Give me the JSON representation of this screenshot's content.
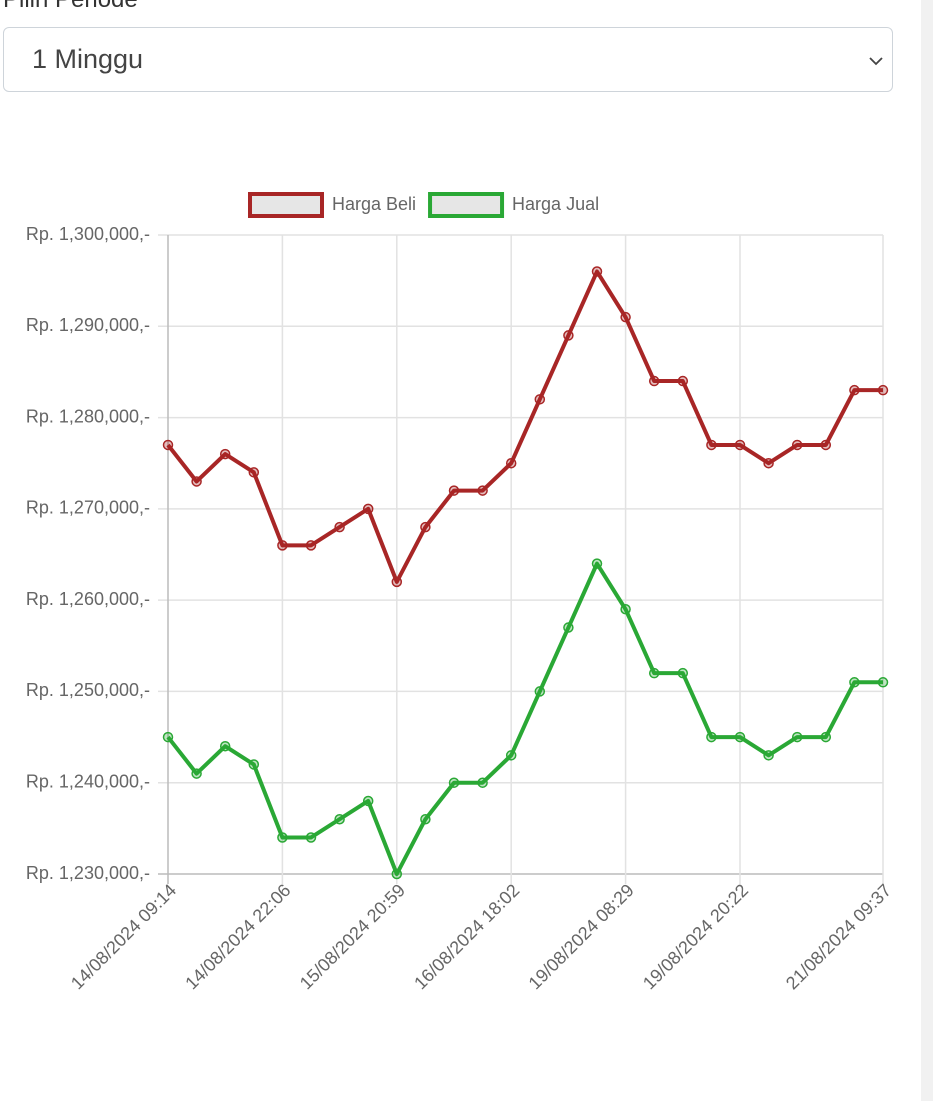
{
  "ui": {
    "label": "Pilih Periode",
    "select": "1 Minggu"
  },
  "chart_data": {
    "type": "line",
    "categories": [
      "14/08/2024 09:14",
      null,
      null,
      null,
      "14/08/2024 22:06",
      null,
      null,
      null,
      "15/08/2024 20:59",
      null,
      null,
      null,
      "16/08/2024 18:02",
      null,
      null,
      null,
      "19/08/2024 08:29",
      null,
      null,
      null,
      "19/08/2024 20:22",
      null,
      null,
      null,
      null,
      "21/08/2024 09:37"
    ],
    "series": [
      {
        "name": "Harga Beli",
        "color": "#a82626",
        "values": [
          1277000,
          1273000,
          1276000,
          1274000,
          1266000,
          1266000,
          1268000,
          1270000,
          1262000,
          1268000,
          1272000,
          1272000,
          1275000,
          1282000,
          1289000,
          1296000,
          1291000,
          1284000,
          1284000,
          1277000,
          1277000,
          1275000,
          1277000,
          1277000,
          1283000,
          1283000
        ]
      },
      {
        "name": "Harga Jual",
        "color": "#2aa835",
        "values": [
          1245000,
          1241000,
          1244000,
          1242000,
          1234000,
          1234000,
          1236000,
          1238000,
          1230000,
          1236000,
          1240000,
          1240000,
          1243000,
          1250000,
          1257000,
          1264000,
          1259000,
          1252000,
          1252000,
          1245000,
          1245000,
          1243000,
          1245000,
          1245000,
          1251000,
          1251000
        ]
      }
    ],
    "ylim": [
      1230000,
      1300000
    ],
    "yticks": [
      {
        "value": 1230000,
        "label": "Rp. 1,230,000,-"
      },
      {
        "value": 1240000,
        "label": "Rp. 1,240,000,-"
      },
      {
        "value": 1250000,
        "label": "Rp. 1,250,000,-"
      },
      {
        "value": 1260000,
        "label": "Rp. 1,260,000,-"
      },
      {
        "value": 1270000,
        "label": "Rp. 1,270,000,-"
      },
      {
        "value": 1280000,
        "label": "Rp. 1,280,000,-"
      },
      {
        "value": 1290000,
        "label": "Rp. 1,290,000,-"
      },
      {
        "value": 1300000,
        "label": "Rp. 1,300,000,-"
      }
    ],
    "grid": true,
    "legend": "top"
  }
}
